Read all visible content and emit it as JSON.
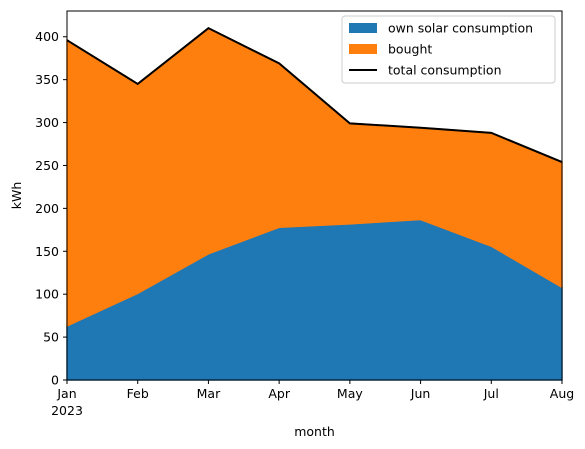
{
  "chart_data": {
    "type": "area",
    "stacked": true,
    "title": "",
    "xlabel": "month",
    "ylabel": "kWh",
    "x_year_label": "2023",
    "categories": [
      "Jan",
      "Feb",
      "Mar",
      "Apr",
      "May",
      "Jun",
      "Jul",
      "Aug"
    ],
    "ylim": [
      0,
      430
    ],
    "yticks": [
      0,
      50,
      100,
      150,
      200,
      250,
      300,
      350,
      400
    ],
    "series": [
      {
        "name": "own solar consumption",
        "color": "#1f77b4",
        "values": [
          63,
          101,
          147,
          178,
          182,
          187,
          156,
          108
        ]
      },
      {
        "name": "bought",
        "color": "#ff7f0e",
        "values": [
          333,
          244,
          263,
          191,
          117,
          107,
          132,
          146
        ]
      }
    ],
    "line": {
      "name": "total consumption",
      "color": "#000000",
      "values": [
        396,
        345,
        410,
        369,
        299,
        294,
        288,
        254
      ]
    },
    "legend_position": "top-right",
    "grid": false
  }
}
